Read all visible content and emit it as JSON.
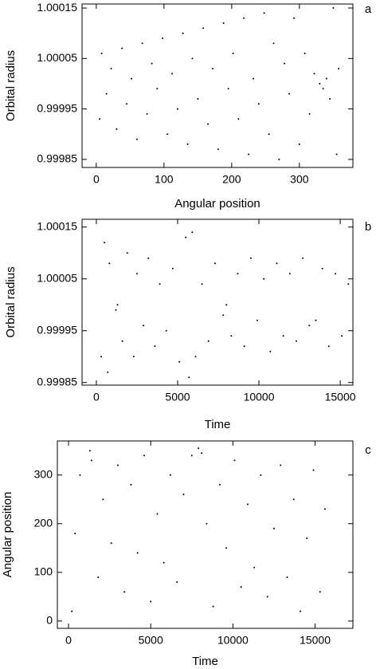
{
  "chart_data": [
    {
      "type": "scatter",
      "panel": "a",
      "xlabel": "Angular position",
      "ylabel": "Orbital radius",
      "color": "#000000",
      "xlim": [
        -21,
        379
      ],
      "xticks": [
        0,
        100,
        200,
        300
      ],
      "ylim": [
        0.999834,
        1.000158
      ],
      "yticks": [
        0.99985,
        0.99995,
        1.00005,
        1.00015
      ],
      "x": [
        5,
        8,
        15,
        22,
        30,
        38,
        45,
        52,
        60,
        68,
        75,
        82,
        90,
        98,
        105,
        112,
        120,
        128,
        135,
        142,
        150,
        158,
        165,
        172,
        180,
        188,
        195,
        202,
        210,
        218,
        225,
        232,
        240,
        248,
        255,
        262,
        270,
        278,
        285,
        292,
        300,
        308,
        315,
        322,
        330,
        335,
        340,
        345,
        350,
        355,
        358
      ],
      "values": [
        0.99993,
        1.00006,
        0.99998,
        1.00003,
        0.99991,
        1.00007,
        0.99996,
        1.00001,
        0.99989,
        1.00008,
        0.99994,
        1.00004,
        0.99999,
        1.00009,
        0.9999,
        1.00002,
        0.99995,
        1.0001,
        0.99988,
        1.00005,
        0.99997,
        1.00011,
        0.99992,
        1.00003,
        0.99987,
        1.00012,
        0.99999,
        1.00006,
        0.99993,
        1.00013,
        0.99986,
        1.00001,
        0.99996,
        1.00014,
        0.9999,
        1.00008,
        0.99985,
        1.00004,
        0.99998,
        1.00013,
        0.99988,
        1.00006,
        0.99994,
        1.00002,
        1.0,
        0.99999,
        1.00001,
        0.99997,
        1.00015,
        0.99986,
        1.00003
      ]
    },
    {
      "type": "scatter",
      "panel": "b",
      "xlabel": "Time",
      "ylabel": "Orbital radius",
      "color": "#000000",
      "xlim": [
        -880,
        15780
      ],
      "xticks": [
        0,
        5000,
        10000,
        15000
      ],
      "ylim": [
        0.999845,
        1.000165
      ],
      "yticks": [
        0.99985,
        0.99995,
        1.00005,
        1.00015
      ],
      "x": [
        300,
        500,
        700,
        800,
        1200,
        1300,
        1600,
        1900,
        2300,
        2500,
        2900,
        3200,
        3600,
        3900,
        4300,
        4700,
        5100,
        5500,
        5700,
        5900,
        6100,
        6500,
        6900,
        7300,
        7800,
        8000,
        8300,
        8700,
        9100,
        9500,
        9900,
        10300,
        10700,
        11100,
        11500,
        11900,
        12300,
        12700,
        13100,
        13500,
        13900,
        14300,
        14700,
        15100,
        15500
      ],
      "values": [
        0.9999,
        1.00012,
        0.99987,
        1.00008,
        0.99999,
        1.0,
        0.99993,
        1.0001,
        0.9999,
        1.00006,
        0.99996,
        1.00009,
        0.99992,
        1.00004,
        0.99995,
        1.00007,
        0.99989,
        1.00013,
        0.99986,
        1.00014,
        0.9999,
        1.00004,
        0.99993,
        1.00008,
        0.99998,
        1.0,
        0.99994,
        1.00006,
        0.99992,
        1.00009,
        0.99997,
        1.00005,
        0.99991,
        1.00008,
        0.99994,
        1.00006,
        0.99993,
        1.00009,
        0.99996,
        0.99997,
        1.00007,
        0.99992,
        1.00006,
        0.99994,
        1.00004
      ]
    },
    {
      "type": "scatter",
      "panel": "c",
      "xlabel": "Time",
      "ylabel": "Angular position",
      "color": "#000000",
      "xlim": [
        -680,
        17300
      ],
      "xticks": [
        0,
        5000,
        10000,
        15000
      ],
      "ylim": [
        -15,
        370
      ],
      "yticks": [
        0,
        100,
        200,
        300
      ],
      "x": [
        200,
        400,
        700,
        1300,
        1400,
        1800,
        2100,
        2600,
        3000,
        3400,
        3800,
        4200,
        4600,
        5000,
        5400,
        5800,
        6200,
        6600,
        7000,
        7500,
        7900,
        8100,
        8400,
        8800,
        9200,
        9600,
        10100,
        10500,
        10900,
        11300,
        11700,
        12100,
        12500,
        12900,
        13300,
        13700,
        14100,
        14500,
        14900,
        15300,
        15600
      ],
      "values": [
        20,
        180,
        300,
        350,
        330,
        90,
        250,
        160,
        320,
        60,
        280,
        140,
        340,
        40,
        220,
        120,
        300,
        80,
        260,
        340,
        355,
        345,
        200,
        30,
        280,
        150,
        330,
        70,
        240,
        110,
        300,
        50,
        190,
        320,
        90,
        250,
        20,
        170,
        310,
        60,
        230
      ]
    }
  ]
}
